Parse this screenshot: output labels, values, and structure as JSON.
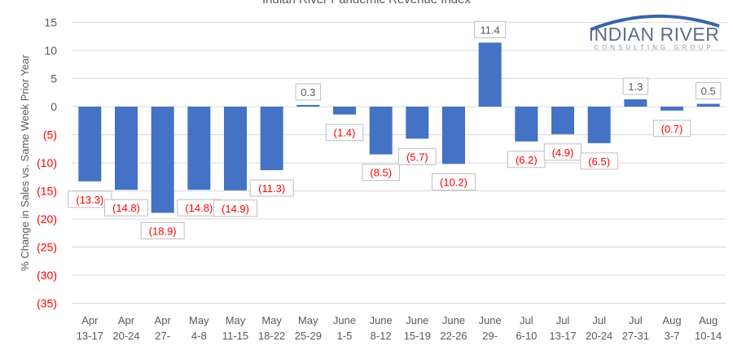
{
  "chart_data": {
    "type": "bar",
    "title": "Indian River Pandemic Revenue Index",
    "xlabel": "",
    "ylabel": "% Change in Sales vs. Same Week Prior Year",
    "ylim": [
      -35,
      15
    ],
    "yticks": [
      15,
      10,
      5,
      0,
      -5,
      -10,
      -15,
      -20,
      -25,
      -30,
      -35
    ],
    "ytick_labels": [
      "15",
      "10",
      "5",
      "0",
      "(5)",
      "(10)",
      "(15)",
      "(20)",
      "(25)",
      "(30)",
      "(35)"
    ],
    "grid": true,
    "categories": [
      [
        "Apr",
        "13-17"
      ],
      [
        "Apr",
        "20-24"
      ],
      [
        "Apr",
        "27-"
      ],
      [
        "May",
        "4-8"
      ],
      [
        "May",
        "11-15"
      ],
      [
        "May",
        "18-22"
      ],
      [
        "May",
        "25-29"
      ],
      [
        "June",
        "1-5"
      ],
      [
        "June",
        "8-12"
      ],
      [
        "June",
        "15-19"
      ],
      [
        "June",
        "22-26"
      ],
      [
        "June",
        "29-"
      ],
      [
        "Jul",
        "6-10"
      ],
      [
        "Jul",
        "13-17"
      ],
      [
        "Jul",
        "20-24"
      ],
      [
        "Jul",
        "27-31"
      ],
      [
        "Aug",
        "3-7"
      ],
      [
        "Aug",
        "10-14"
      ]
    ],
    "values": [
      -13.3,
      -14.8,
      -18.9,
      -14.8,
      -14.9,
      -11.3,
      0.3,
      -1.4,
      -8.5,
      -5.7,
      -10.2,
      11.4,
      -6.2,
      -4.9,
      -6.5,
      1.3,
      -0.7,
      0.5
    ],
    "data_labels": [
      "(13.3)",
      "(14.8)",
      "(18.9)",
      "(14.8)",
      "(14.9)",
      "(11.3)",
      "0.3",
      "(1.4)",
      "(8.5)",
      "(5.7)",
      "(10.2)",
      "11.4",
      "(6.2)",
      "(4.9)",
      "(6.5)",
      "1.3",
      "(0.7)",
      "0.5"
    ],
    "bar_color": "#4472c4",
    "negative_label_color": "#ff0000"
  },
  "logo": {
    "line1": "INDIAN RIVER",
    "line2": "CONSULTING GROUP"
  }
}
